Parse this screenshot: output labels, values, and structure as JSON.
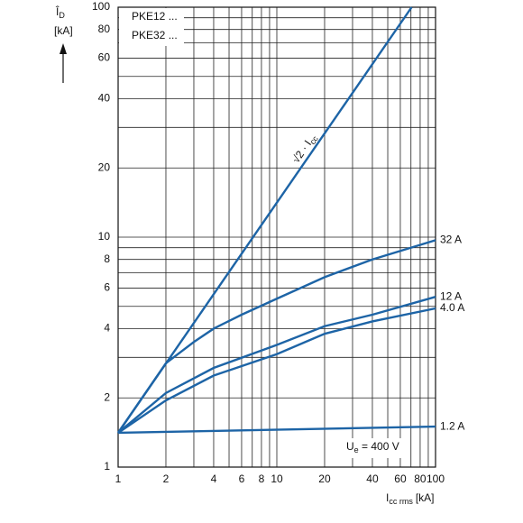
{
  "chart_data": {
    "type": "line",
    "log_x": true,
    "log_y": true,
    "grid": true,
    "ylabel": {
      "main": "Î",
      "sub": "D",
      "unit": "[kA]"
    },
    "xlabel": {
      "main": "I",
      "sub": "cc rms",
      "unit": "[kA]"
    },
    "legend_lines": [
      "PKE12 ...",
      "PKE32 ..."
    ],
    "xlim": [
      1,
      100
    ],
    "ylim": [
      1,
      100
    ],
    "xticks": [
      1,
      2,
      4,
      6,
      8,
      10,
      20,
      40,
      60,
      80,
      100
    ],
    "yticks": [
      1,
      2,
      4,
      6,
      8,
      10,
      20,
      40,
      60,
      80,
      100
    ],
    "xminor": [
      3,
      5,
      7,
      9,
      30,
      50,
      70,
      90
    ],
    "yminor": [
      3,
      5,
      7,
      9,
      30,
      50,
      70,
      90
    ],
    "color": "#1d64a6",
    "line_label": {
      "main": "√2 · I",
      "sub": "cc"
    },
    "annotation": {
      "main": "U",
      "sub": "e",
      "rest": " = 400 V"
    },
    "series": [
      {
        "name": "√2",
        "x": [
          1,
          70.7
        ],
        "y": [
          1.41,
          100
        ]
      },
      {
        "name": "32 A",
        "x": [
          1,
          2,
          3,
          4,
          6,
          10,
          20,
          40,
          100
        ],
        "y": [
          1.41,
          2.83,
          3.5,
          4.0,
          4.6,
          5.4,
          6.7,
          8.0,
          9.7
        ]
      },
      {
        "name": "12 A",
        "x": [
          1,
          2,
          4,
          10,
          20,
          40,
          100
        ],
        "y": [
          1.41,
          2.1,
          2.7,
          3.4,
          4.1,
          4.6,
          5.5
        ]
      },
      {
        "name": "4.0 A",
        "x": [
          1,
          2,
          4,
          10,
          20,
          40,
          100
        ],
        "y": [
          1.41,
          1.95,
          2.5,
          3.1,
          3.8,
          4.3,
          4.9
        ]
      },
      {
        "name": "1.2 A",
        "x": [
          1,
          100
        ],
        "y": [
          1.41,
          1.5
        ]
      }
    ]
  }
}
